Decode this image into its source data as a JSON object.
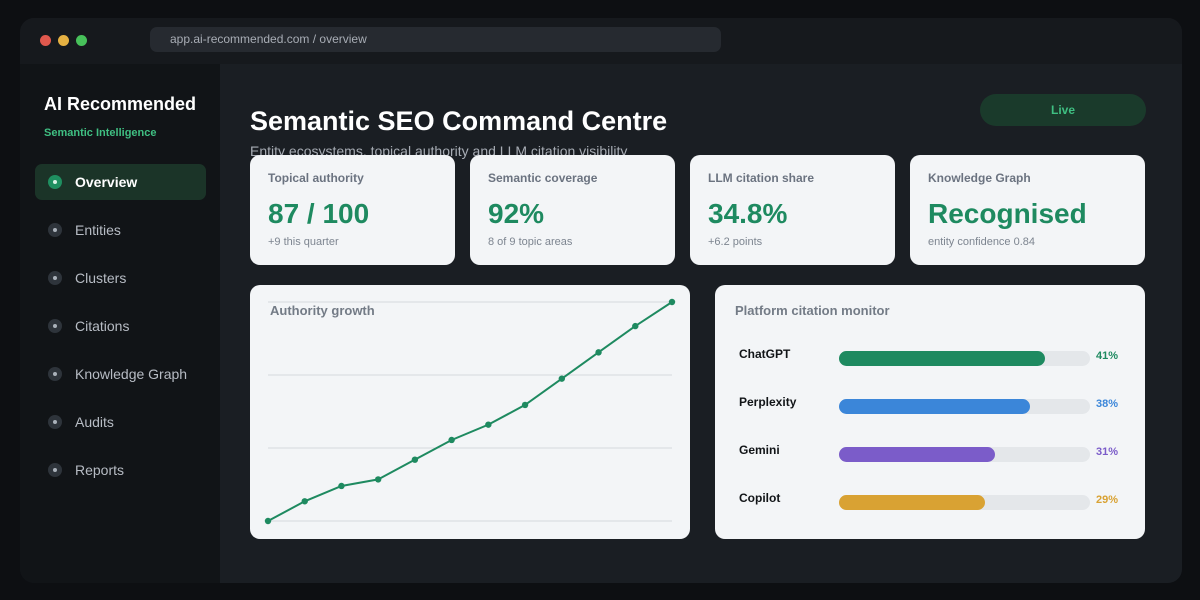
{
  "browser": {
    "url": "app.ai-recommended.com / overview"
  },
  "sidebar": {
    "brand": "AI Recommended",
    "subtitle": "Semantic Intelligence",
    "items": [
      {
        "label": "Overview",
        "active": true
      },
      {
        "label": "Entities"
      },
      {
        "label": "Clusters"
      },
      {
        "label": "Citations"
      },
      {
        "label": "Knowledge Graph"
      },
      {
        "label": "Audits"
      },
      {
        "label": "Reports"
      }
    ]
  },
  "header": {
    "title": "Semantic SEO Command Centre",
    "subtitle": "Entity ecosystems, topical authority and LLM citation visibility",
    "status_badge": "Live"
  },
  "stats": [
    {
      "label": "Topical authority",
      "value": "87 / 100",
      "note": "+9 this quarter"
    },
    {
      "label": "Semantic coverage",
      "value": "92%",
      "note": "8 of 9 topic areas"
    },
    {
      "label": "LLM citation share",
      "value": "34.8%",
      "note": "+6.2 points"
    },
    {
      "label": "Knowledge Graph",
      "value": "Recognised",
      "note": "entity confidence 0.84"
    }
  ],
  "growth_panel": {
    "title": "Authority growth"
  },
  "chart_data": {
    "type": "line",
    "x": [
      1,
      2,
      3,
      4,
      5,
      6,
      7,
      8,
      9,
      10,
      11,
      12
    ],
    "series": [
      {
        "values": [
          0,
          9,
          16,
          19,
          28,
          37,
          44,
          53,
          65,
          77,
          89,
          100
        ]
      }
    ],
    "ylim": [
      0,
      100
    ],
    "grid": true,
    "color": "#1e8a60"
  },
  "platforms": {
    "title": "Platform citation monitor",
    "items": [
      {
        "name": "ChatGPT",
        "percent": "41%",
        "share": 0.82,
        "color": "#1e8a60"
      },
      {
        "name": "Perplexity",
        "percent": "38%",
        "share": 0.76,
        "color": "#3b86d9"
      },
      {
        "name": "Gemini",
        "percent": "31%",
        "share": 0.62,
        "color": "#7b5cc9"
      },
      {
        "name": "Copilot",
        "percent": "29%",
        "share": 0.58,
        "color": "#d9a233"
      }
    ]
  }
}
